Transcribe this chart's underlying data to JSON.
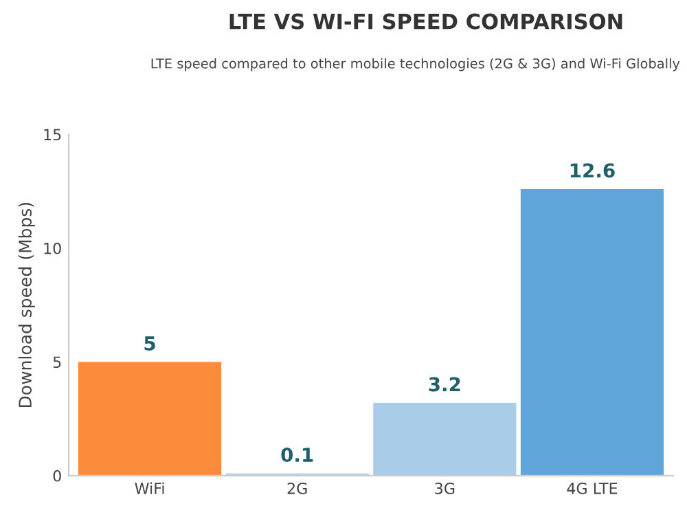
{
  "chart_data": {
    "type": "bar",
    "title": "LTE VS WI-FI SPEED COMPARISON",
    "subtitle": "LTE speed compared to other mobile technologies (2G & 3G) and Wi-Fi Globally",
    "ylabel": "Download speed (Mbps)",
    "categories": [
      "WiFi",
      "2G",
      "3G",
      "4G LTE"
    ],
    "values": [
      5,
      0.1,
      3.2,
      12.6
    ],
    "colors": [
      "#fb8c3c",
      "#b9d3ea",
      "#a9cce8",
      "#5fa5da"
    ],
    "ylim": [
      0,
      15
    ],
    "yticks": [
      0,
      5,
      10,
      15
    ],
    "grid": false,
    "data_labels": true
  }
}
